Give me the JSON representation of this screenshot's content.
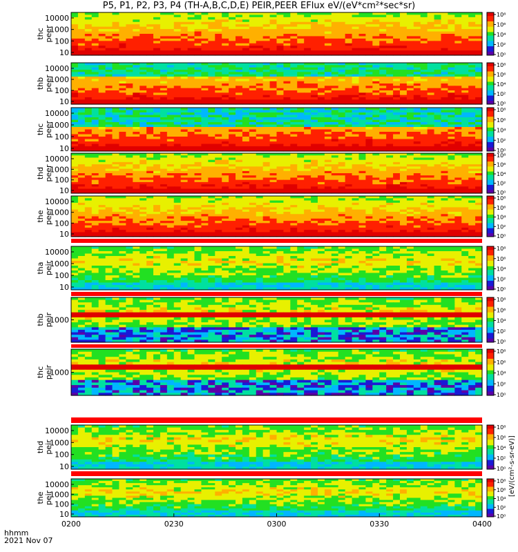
{
  "title": "P5, P1, P2, P3, P4 (TH-A,B,C,D,E) PEIR,PEER EFlux eV/(eV*cm²*sec*sr)",
  "footer": {
    "time_label": "hhmm",
    "date": "2021 Nov 07"
  },
  "colorbar_label": "[eV/(cm²-s-sr-eV)]",
  "colors": {
    "scale": [
      "#5a00a8",
      "#1a1ad6",
      "#00b7ff",
      "#00e0a0",
      "#22e022",
      "#e8f000",
      "#ffb000",
      "#ff2000",
      "#e00000"
    ],
    "missing": "#ffffff",
    "separator": "#ff0000"
  },
  "chart_data": {
    "type": "heatmap",
    "xlabel": "",
    "x_ticks": [
      "0200",
      "0230",
      "0300",
      "0330",
      "0400"
    ],
    "x_range": [
      "0200",
      "0400"
    ],
    "colorbar_ticks": [
      "10⁰",
      "10²",
      "10⁴",
      "10⁶",
      "10⁸"
    ],
    "panels": [
      {
        "ylabel": "thc peer",
        "y_ticks": [
          "10",
          "100",
          "1000",
          "10000"
        ],
        "log_y": true
      },
      {
        "ylabel": "thb peer",
        "y_ticks": [
          "10",
          "100",
          "1000",
          "10000"
        ],
        "log_y": true
      },
      {
        "ylabel": "thc peer",
        "y_ticks": [
          "10",
          "100",
          "1000",
          "10000"
        ],
        "log_y": true
      },
      {
        "ylabel": "thd peer",
        "y_ticks": [
          "10",
          "100",
          "1000",
          "10000"
        ],
        "log_y": true
      },
      {
        "ylabel": "the peer",
        "y_ticks": [
          "10",
          "100",
          "1000",
          "10000"
        ],
        "log_y": true
      },
      {
        "ylabel": "tha peir",
        "y_ticks": [
          "10",
          "100",
          "1000",
          "10000"
        ],
        "log_y": true
      },
      {
        "ylabel": "thb peir",
        "y_ticks": [
          "1000"
        ],
        "log_y": true
      },
      {
        "ylabel": "thc peir",
        "y_ticks": [
          "1000"
        ],
        "log_y": true
      },
      {
        "ylabel": "thd peir",
        "y_ticks": [
          "10",
          "100",
          "1000",
          "10000"
        ],
        "log_y": true
      },
      {
        "ylabel": "the peir",
        "y_ticks": [
          "10",
          "100",
          "1000",
          "10000"
        ],
        "log_y": true
      }
    ]
  }
}
